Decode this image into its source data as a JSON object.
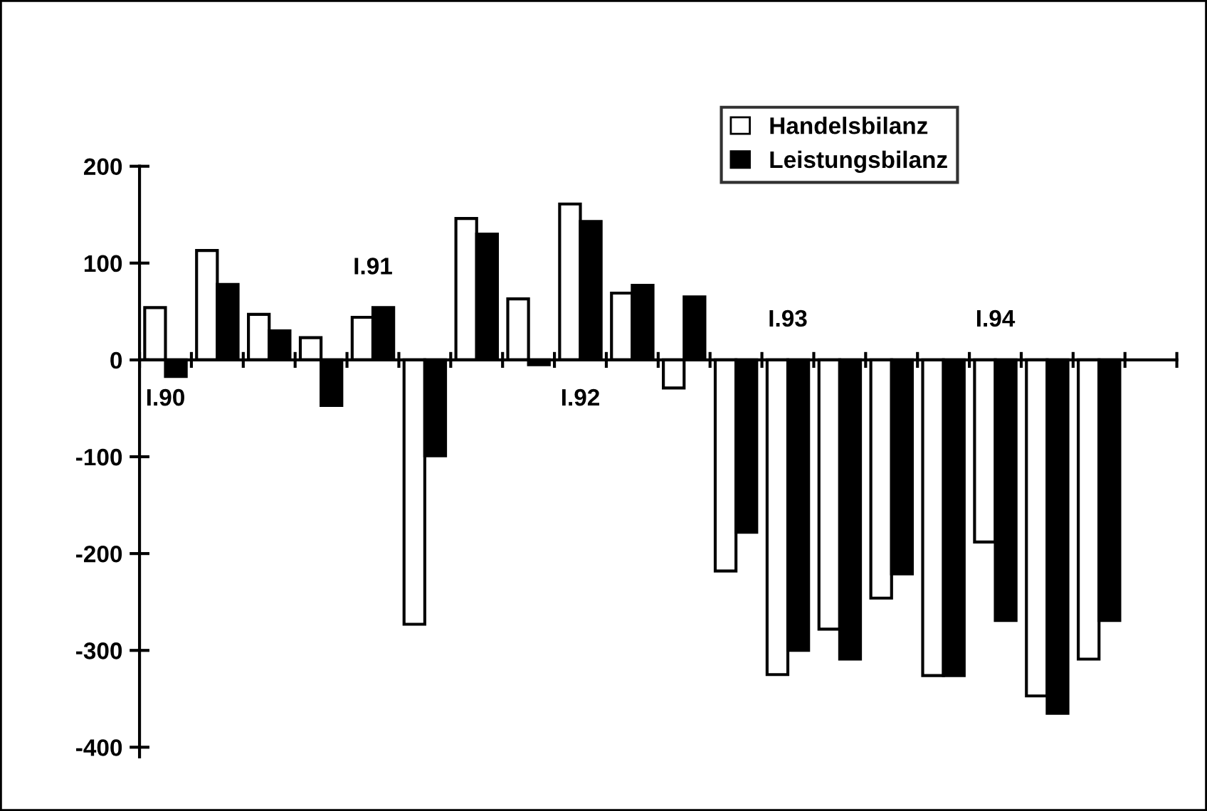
{
  "chart_data": {
    "type": "bar",
    "categories": [
      "I.90",
      null,
      null,
      null,
      "I.91",
      null,
      null,
      null,
      "I.92",
      null,
      null,
      null,
      "I.93",
      null,
      null,
      null,
      "I.94",
      null,
      null,
      null
    ],
    "series": [
      {
        "name": "Handelsbilanz",
        "color": "#ffffff",
        "values": [
          54,
          113,
          47,
          23,
          44,
          -273,
          146,
          63,
          161,
          69,
          -29,
          -218,
          -325,
          -278,
          -246,
          -326,
          -188,
          -347,
          -309,
          null
        ]
      },
      {
        "name": "Leistungsbilanz",
        "color": "#000000",
        "values": [
          -17,
          78,
          30,
          -47,
          54,
          -99,
          130,
          -5,
          143,
          77,
          65,
          -178,
          -300,
          -309,
          -221,
          -326,
          -269,
          -365,
          -269,
          null
        ]
      }
    ],
    "ylim": [
      -410,
      200
    ],
    "yticks": [
      -400,
      -300,
      -200,
      -100,
      0,
      100,
      200
    ],
    "grid": false,
    "legend": "top right"
  }
}
